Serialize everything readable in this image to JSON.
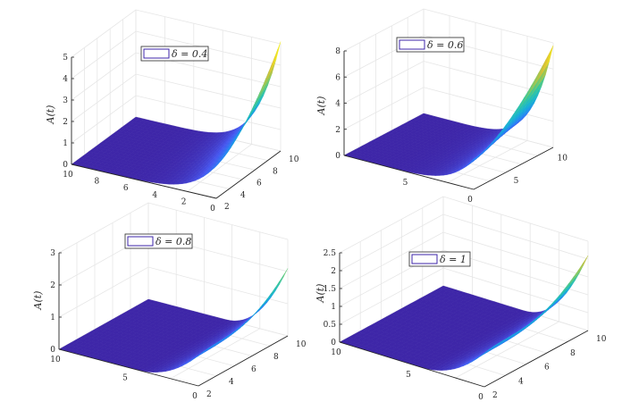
{
  "chart_data": [
    {
      "type": "surface",
      "legend": "δ = 0.4",
      "ylabel": "A(t)",
      "x_axis": {
        "range": [
          0,
          10
        ],
        "ticks": [
          "10",
          "8",
          "6",
          "4",
          "2",
          "0"
        ]
      },
      "y_axis": {
        "range": [
          2,
          10
        ],
        "ticks": [
          "2",
          "4",
          "6",
          "8",
          "10"
        ]
      },
      "z_axis": {
        "range": [
          0,
          5
        ],
        "ticks": [
          "0",
          "1",
          "2",
          "3",
          "4",
          "5"
        ]
      },
      "z_peak": 5.1,
      "grid": true,
      "colormap": "parula"
    },
    {
      "type": "surface",
      "legend": "δ = 0.6",
      "ylabel": "A(t)",
      "x_axis": {
        "range": [
          0,
          10
        ],
        "ticks": [
          "5",
          "0"
        ]
      },
      "y_axis": {
        "range": [
          2,
          10
        ],
        "ticks": [
          "5",
          "10"
        ]
      },
      "z_axis": {
        "range": [
          0,
          8
        ],
        "ticks": [
          "0",
          "2",
          "4",
          "6",
          "8"
        ]
      },
      "z_peak": 7.8,
      "grid": true,
      "colormap": "parula"
    },
    {
      "type": "surface",
      "legend": "δ = 0.8",
      "ylabel": "A(t)",
      "x_axis": {
        "range": [
          0,
          10
        ],
        "ticks": [
          "10",
          "5",
          "0"
        ]
      },
      "y_axis": {
        "range": [
          2,
          10
        ],
        "ticks": [
          "2",
          "4",
          "6",
          "8",
          "10"
        ]
      },
      "z_axis": {
        "range": [
          0,
          3
        ],
        "ticks": [
          "0",
          "1",
          "2",
          "3"
        ]
      },
      "z_peak": 2.1,
      "grid": true,
      "colormap": "parula"
    },
    {
      "type": "surface",
      "legend": "δ = 1",
      "ylabel": "A(t)",
      "x_axis": {
        "range": [
          0,
          10
        ],
        "ticks": [
          "10",
          "5",
          "0"
        ]
      },
      "y_axis": {
        "range": [
          2,
          10
        ],
        "ticks": [
          "2",
          "4",
          "6",
          "8",
          "10"
        ]
      },
      "z_axis": {
        "range": [
          0,
          2.5
        ],
        "ticks": [
          "0",
          "0.5",
          "1",
          "1.5",
          "2",
          "2.5"
        ]
      },
      "z_peak": 2.1,
      "grid": true,
      "colormap": "parula"
    }
  ]
}
